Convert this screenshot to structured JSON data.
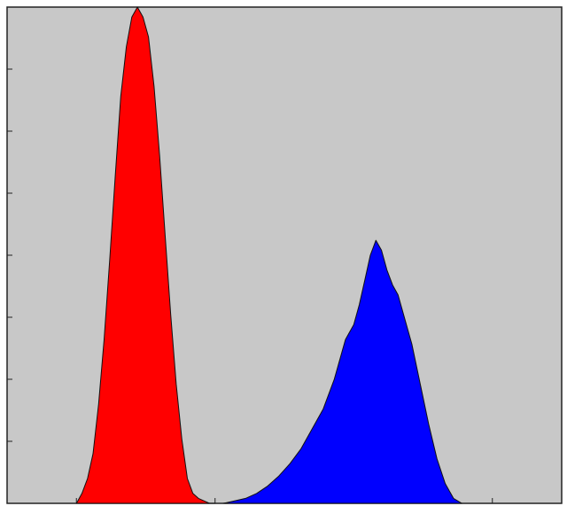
{
  "chart_data": {
    "type": "area",
    "title": "",
    "xlabel": "",
    "ylabel": "",
    "xlim": [
      0,
      100
    ],
    "ylim": [
      0,
      100
    ],
    "background": "#c8c8c8",
    "grid": false,
    "x_tick_count": 8,
    "y_tick_count": 8,
    "series": [
      {
        "color": "#ff0000",
        "x": [
          12.5,
          13.5,
          14.5,
          15.5,
          16.5,
          17.5,
          18.5,
          19.5,
          20.5,
          21.5,
          22.5,
          23.5,
          24.5,
          25.5,
          26.5,
          27.5,
          28.5,
          29.5,
          30.5,
          31.5,
          32.5,
          33.5,
          34.5,
          35.5,
          36.5,
          37.5
        ],
        "y": [
          0,
          2,
          5,
          10,
          20,
          33,
          49,
          66,
          82,
          92,
          98,
          100,
          98,
          94,
          84,
          70,
          54,
          38,
          24,
          13,
          5,
          2,
          1,
          0.5,
          0,
          0
        ]
      },
      {
        "color": "#0000ff",
        "x": [
          39,
          41,
          43,
          45,
          47,
          49,
          51,
          53,
          55,
          57,
          59,
          61,
          62.5,
          63.5,
          64.5,
          65.5,
          66.5,
          67.5,
          68.5,
          69.5,
          70.5,
          71.5,
          73,
          74.5,
          76,
          77.5,
          79,
          80.5,
          82
        ],
        "y": [
          0,
          0.5,
          1,
          2,
          3.5,
          5.5,
          8,
          11,
          15,
          19,
          25,
          33,
          36,
          40,
          45,
          50,
          53,
          51,
          47,
          44,
          42,
          38,
          32,
          24,
          16,
          9,
          4,
          1,
          0
        ]
      }
    ]
  }
}
